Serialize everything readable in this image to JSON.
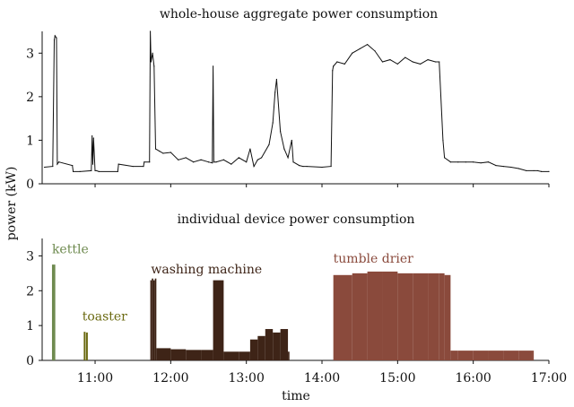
{
  "chart_data": [
    {
      "type": "line",
      "title": "whole-house aggregate power consumption",
      "ylabel": "power (kW)",
      "xlabel": "",
      "x_unit": "hours",
      "xlim": [
        10.3,
        17.0
      ],
      "ylim": [
        0,
        3.5
      ],
      "yticks": [
        "0",
        "1",
        "2",
        "3"
      ],
      "xticks": [],
      "grid": false,
      "series": [
        {
          "color": "#111111",
          "x": [
            10.33,
            10.44,
            10.46,
            10.47,
            10.49,
            10.5,
            10.52,
            10.7,
            10.71,
            10.8,
            10.95,
            10.96,
            10.97,
            10.98,
            11.0,
            11.02,
            11.05,
            11.3,
            11.31,
            11.5,
            11.64,
            11.65,
            11.72,
            11.73,
            11.74,
            11.76,
            11.78,
            11.8,
            11.85,
            11.9,
            12.0,
            12.1,
            12.2,
            12.3,
            12.4,
            12.5,
            12.55,
            12.56,
            12.57,
            12.6,
            12.7,
            12.8,
            12.9,
            13.0,
            13.05,
            13.1,
            13.15,
            13.2,
            13.3,
            13.35,
            13.38,
            13.4,
            13.45,
            13.5,
            13.55,
            13.6,
            13.62,
            13.7,
            13.75,
            13.8,
            14.0,
            14.12,
            14.14,
            14.15,
            14.2,
            14.3,
            14.4,
            14.5,
            14.6,
            14.7,
            14.8,
            14.9,
            15.0,
            15.1,
            15.2,
            15.3,
            15.4,
            15.5,
            15.55,
            15.6,
            15.62,
            15.7,
            15.8,
            15.9,
            16.0,
            16.1,
            16.2,
            16.3,
            16.4,
            16.5,
            16.6,
            16.7,
            16.8,
            16.85,
            16.9,
            17.0
          ],
          "y": [
            0.38,
            0.4,
            3.3,
            3.4,
            3.35,
            0.45,
            0.5,
            0.42,
            0.28,
            0.28,
            0.3,
            1.1,
            0.45,
            1.05,
            0.3,
            0.3,
            0.28,
            0.28,
            0.45,
            0.4,
            0.4,
            0.5,
            0.5,
            3.5,
            2.8,
            3.0,
            2.7,
            0.8,
            0.75,
            0.7,
            0.72,
            0.55,
            0.6,
            0.5,
            0.55,
            0.5,
            0.48,
            2.7,
            0.5,
            0.5,
            0.55,
            0.45,
            0.6,
            0.5,
            0.8,
            0.4,
            0.55,
            0.6,
            0.9,
            1.4,
            2.1,
            2.4,
            1.2,
            0.8,
            0.6,
            1.0,
            0.5,
            0.42,
            0.4,
            0.4,
            0.38,
            0.4,
            2.6,
            2.7,
            2.8,
            2.75,
            3.0,
            3.1,
            3.2,
            3.05,
            2.8,
            2.85,
            2.75,
            2.9,
            2.8,
            2.75,
            2.85,
            2.8,
            2.8,
            1.0,
            0.6,
            0.5,
            0.5,
            0.5,
            0.5,
            0.48,
            0.5,
            0.42,
            0.4,
            0.38,
            0.35,
            0.3,
            0.3,
            0.3,
            0.28,
            0.28
          ]
        }
      ]
    },
    {
      "type": "bar",
      "title": "individual device power consumption",
      "ylabel": "power (kW)",
      "xlabel": "time",
      "x_unit": "hours",
      "xlim": [
        10.3,
        17.0
      ],
      "ylim": [
        0,
        3.5
      ],
      "yticks": [
        "0",
        "1",
        "2",
        "3"
      ],
      "xticks": [
        "11:00",
        "12:00",
        "13:00",
        "14:00",
        "15:00",
        "16:00",
        "17:00"
      ],
      "grid": false,
      "annotations": [
        {
          "label": "kettle",
          "color": "#6e8a4f"
        },
        {
          "label": "toaster",
          "color": "#6b6a12"
        },
        {
          "label": "washing machine",
          "color": "#3e2417"
        },
        {
          "label": "tumble drier",
          "color": "#8a4a3c"
        }
      ],
      "series": [
        {
          "name": "kettle",
          "color": "#6e8a4f",
          "x": [
            10.43,
            10.45
          ],
          "y": [
            2.75,
            2.75
          ]
        },
        {
          "name": "toaster",
          "color": "#6b6a12",
          "x": [
            10.85,
            10.88
          ],
          "y": [
            0.82,
            0.8
          ]
        },
        {
          "name": "washing machine",
          "color": "#3e2417",
          "x": [
            11.73,
            11.75,
            11.77,
            11.79,
            11.81,
            12.0,
            12.2,
            12.4,
            12.56,
            12.7,
            12.9,
            13.05,
            13.15,
            13.25,
            13.35,
            13.45,
            13.55
          ],
          "y": [
            2.3,
            2.35,
            2.3,
            2.35,
            0.35,
            0.32,
            0.3,
            0.3,
            2.3,
            0.25,
            0.25,
            0.6,
            0.7,
            0.9,
            0.8,
            0.9,
            0.25
          ]
        },
        {
          "name": "tumble drier",
          "color": "#8a4a3c",
          "x": [
            14.15,
            14.4,
            14.6,
            14.8,
            15.0,
            15.2,
            15.4,
            15.55,
            15.62,
            15.7,
            15.8,
            16.0,
            16.2,
            16.4,
            16.6,
            16.78
          ],
          "y": [
            2.45,
            2.5,
            2.55,
            2.55,
            2.5,
            2.5,
            2.5,
            2.5,
            2.45,
            0.28,
            0.28,
            0.28,
            0.28,
            0.28,
            0.28,
            0.28
          ]
        }
      ]
    }
  ]
}
